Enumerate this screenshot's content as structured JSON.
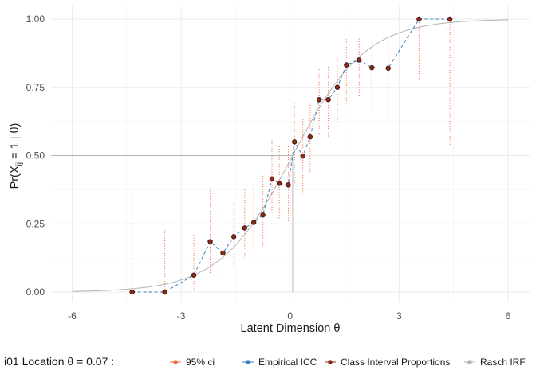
{
  "chart_data": {
    "type": "line",
    "xlabel": "Latent Dimension θ",
    "ylabel": "Pr(X_ij = 1 | θ)",
    "ylabel_parts": {
      "pre": "Pr(X",
      "sub": "ij",
      "post": " = 1 | θ)"
    },
    "xlim": [
      -6,
      6
    ],
    "ylim": [
      0,
      1
    ],
    "x_ticks": [
      -6,
      -3,
      0,
      3,
      6
    ],
    "y_ticks": [
      0,
      0.25,
      0.5,
      0.75,
      1
    ],
    "x_tick_labels": [
      "-6",
      "-3",
      "0",
      "3",
      "6"
    ],
    "y_tick_labels": [
      "0.00",
      "0.25",
      "0.50",
      "0.75",
      "1.00"
    ],
    "grid": true,
    "legend_position": "bottom",
    "location": 0.07,
    "reference_line_y": 0.5,
    "legend": {
      "title": "i01 Location  θ = 0.07 :",
      "items": [
        {
          "label": "95% ci",
          "color": "#f46d43"
        },
        {
          "label": "Empirical ICC",
          "color": "#3a7fc1"
        },
        {
          "label": "Class Interval Proportions",
          "color": "#8b2a1a"
        },
        {
          "label": "Rasch IRF",
          "color": "#b3b3b3"
        }
      ]
    },
    "colors": {
      "ci": "#f46d43",
      "empirical": "#3a7fc1",
      "point_fill": "#8b2a1a",
      "point_stroke": "#3d0e06",
      "rasch": "#b3b3b3",
      "reference": "#b3b3b3"
    },
    "points": [
      {
        "x": -4.35,
        "y": 0.0,
        "lo": 0.0,
        "hi": 0.37
      },
      {
        "x": -3.45,
        "y": 0.0,
        "lo": 0.0,
        "hi": 0.23
      },
      {
        "x": -2.65,
        "y": 0.062,
        "lo": 0.01,
        "hi": 0.21
      },
      {
        "x": -2.2,
        "y": 0.185,
        "lo": 0.07,
        "hi": 0.38
      },
      {
        "x": -1.85,
        "y": 0.143,
        "lo": 0.06,
        "hi": 0.29
      },
      {
        "x": -1.55,
        "y": 0.203,
        "lo": 0.1,
        "hi": 0.33
      },
      {
        "x": -1.25,
        "y": 0.235,
        "lo": 0.13,
        "hi": 0.38
      },
      {
        "x": -1.0,
        "y": 0.255,
        "lo": 0.15,
        "hi": 0.4
      },
      {
        "x": -0.75,
        "y": 0.282,
        "lo": 0.17,
        "hi": 0.43
      },
      {
        "x": -0.5,
        "y": 0.415,
        "lo": 0.29,
        "hi": 0.56
      },
      {
        "x": -0.3,
        "y": 0.398,
        "lo": 0.27,
        "hi": 0.54
      },
      {
        "x": -0.05,
        "y": 0.393,
        "lo": 0.26,
        "hi": 0.54
      },
      {
        "x": 0.12,
        "y": 0.55,
        "lo": 0.39,
        "hi": 0.69
      },
      {
        "x": 0.35,
        "y": 0.498,
        "lo": 0.36,
        "hi": 0.64
      },
      {
        "x": 0.55,
        "y": 0.568,
        "lo": 0.44,
        "hi": 0.69
      },
      {
        "x": 0.8,
        "y": 0.705,
        "lo": 0.58,
        "hi": 0.82
      },
      {
        "x": 1.05,
        "y": 0.705,
        "lo": 0.57,
        "hi": 0.83
      },
      {
        "x": 1.3,
        "y": 0.75,
        "lo": 0.62,
        "hi": 0.86
      },
      {
        "x": 1.55,
        "y": 0.832,
        "lo": 0.69,
        "hi": 0.93
      },
      {
        "x": 1.9,
        "y": 0.85,
        "lo": 0.72,
        "hi": 0.93
      },
      {
        "x": 2.25,
        "y": 0.822,
        "lo": 0.68,
        "hi": 0.92
      },
      {
        "x": 2.7,
        "y": 0.82,
        "lo": 0.63,
        "hi": 0.94
      },
      {
        "x": 3.55,
        "y": 1.0,
        "lo": 0.78,
        "hi": 1.0
      },
      {
        "x": 4.4,
        "y": 1.0,
        "lo": 0.54,
        "hi": 1.0
      }
    ]
  }
}
